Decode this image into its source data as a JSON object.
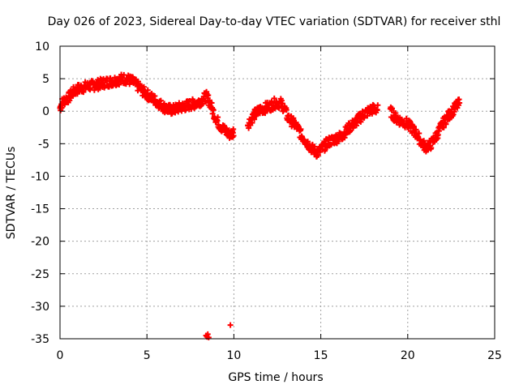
{
  "chart_data": {
    "type": "scatter",
    "title": "Day 026 of 2023, Sidereal Day-to-day VTEC variation (SDTVAR) for receiver sthl",
    "xlabel": "GPS time / hours",
    "ylabel": "SDTVAR / TECUs",
    "xlim": [
      0,
      25
    ],
    "ylim": [
      -35,
      10
    ],
    "xticks": [
      "0",
      "5",
      "10",
      "15",
      "20",
      "25"
    ],
    "yticks": [
      "10",
      "5",
      "0",
      "-5",
      "-10",
      "-15",
      "-20",
      "-25",
      "-30",
      "-35"
    ],
    "grid": true,
    "marker": "plus",
    "color": "#ff0000",
    "series": [
      {
        "name": "sthl",
        "band_half_width": 0.8,
        "points": [
          [
            0.0,
            0.5
          ],
          [
            0.1,
            1.2
          ],
          [
            0.3,
            1.8
          ],
          [
            0.5,
            2.1
          ],
          [
            0.7,
            2.8
          ],
          [
            0.9,
            3.2
          ],
          [
            1.1,
            3.5
          ],
          [
            1.4,
            3.7
          ],
          [
            1.7,
            3.9
          ],
          [
            2.0,
            4.0
          ],
          [
            2.3,
            4.2
          ],
          [
            2.6,
            4.4
          ],
          [
            3.0,
            4.6
          ],
          [
            3.3,
            4.8
          ],
          [
            3.6,
            5.0
          ],
          [
            3.9,
            4.9
          ],
          [
            4.2,
            4.5
          ],
          [
            4.5,
            3.8
          ],
          [
            4.8,
            3.0
          ],
          [
            5.1,
            2.4
          ],
          [
            5.4,
            1.8
          ],
          [
            5.7,
            1.2
          ],
          [
            6.0,
            0.6
          ],
          [
            6.2,
            0.3
          ],
          [
            6.5,
            0.2
          ],
          [
            6.8,
            0.5
          ],
          [
            7.1,
            0.7
          ],
          [
            7.5,
            1.0
          ],
          [
            7.9,
            1.3
          ],
          [
            8.2,
            1.8
          ],
          [
            8.4,
            2.3
          ],
          [
            8.6,
            1.5
          ],
          [
            8.8,
            0.0
          ],
          [
            9.0,
            -1.3
          ],
          [
            9.2,
            -2.2
          ],
          [
            9.5,
            -3.0
          ],
          [
            9.7,
            -3.5
          ],
          [
            9.9,
            -3.5
          ],
          [
            10.0,
            -3.0
          ],
          [
            10.8,
            -2.0
          ],
          [
            11.0,
            -1.2
          ],
          [
            11.2,
            -0.5
          ],
          [
            11.5,
            0.2
          ],
          [
            11.8,
            0.5
          ],
          [
            12.1,
            0.8
          ],
          [
            12.4,
            1.3
          ],
          [
            12.7,
            1.2
          ],
          [
            12.9,
            0.5
          ],
          [
            13.1,
            -1.0
          ],
          [
            13.3,
            -1.5
          ],
          [
            13.6,
            -2.3
          ],
          [
            13.9,
            -3.8
          ],
          [
            14.2,
            -4.8
          ],
          [
            14.5,
            -5.8
          ],
          [
            14.8,
            -6.4
          ],
          [
            15.1,
            -5.7
          ],
          [
            15.4,
            -4.8
          ],
          [
            15.8,
            -4.3
          ],
          [
            16.2,
            -3.8
          ],
          [
            16.6,
            -2.6
          ],
          [
            17.0,
            -1.7
          ],
          [
            17.4,
            -0.6
          ],
          [
            17.8,
            0.1
          ],
          [
            18.1,
            0.4
          ],
          [
            18.3,
            0.2
          ],
          [
            19.0,
            0.0
          ],
          [
            19.3,
            -1.0
          ],
          [
            19.6,
            -1.5
          ],
          [
            19.9,
            -1.8
          ],
          [
            20.2,
            -2.5
          ],
          [
            20.5,
            -3.5
          ],
          [
            20.8,
            -4.8
          ],
          [
            21.0,
            -5.5
          ],
          [
            21.3,
            -5.2
          ],
          [
            21.6,
            -4.0
          ],
          [
            21.9,
            -2.5
          ],
          [
            22.2,
            -1.2
          ],
          [
            22.5,
            -0.2
          ],
          [
            22.8,
            0.8
          ],
          [
            23.0,
            1.2
          ]
        ]
      }
    ],
    "outliers": [
      [
        8.4,
        -34.5
      ],
      [
        8.45,
        -34.7
      ],
      [
        8.5,
        -34.3
      ],
      [
        8.55,
        -34.8
      ],
      [
        9.8,
        -32.9
      ]
    ]
  }
}
